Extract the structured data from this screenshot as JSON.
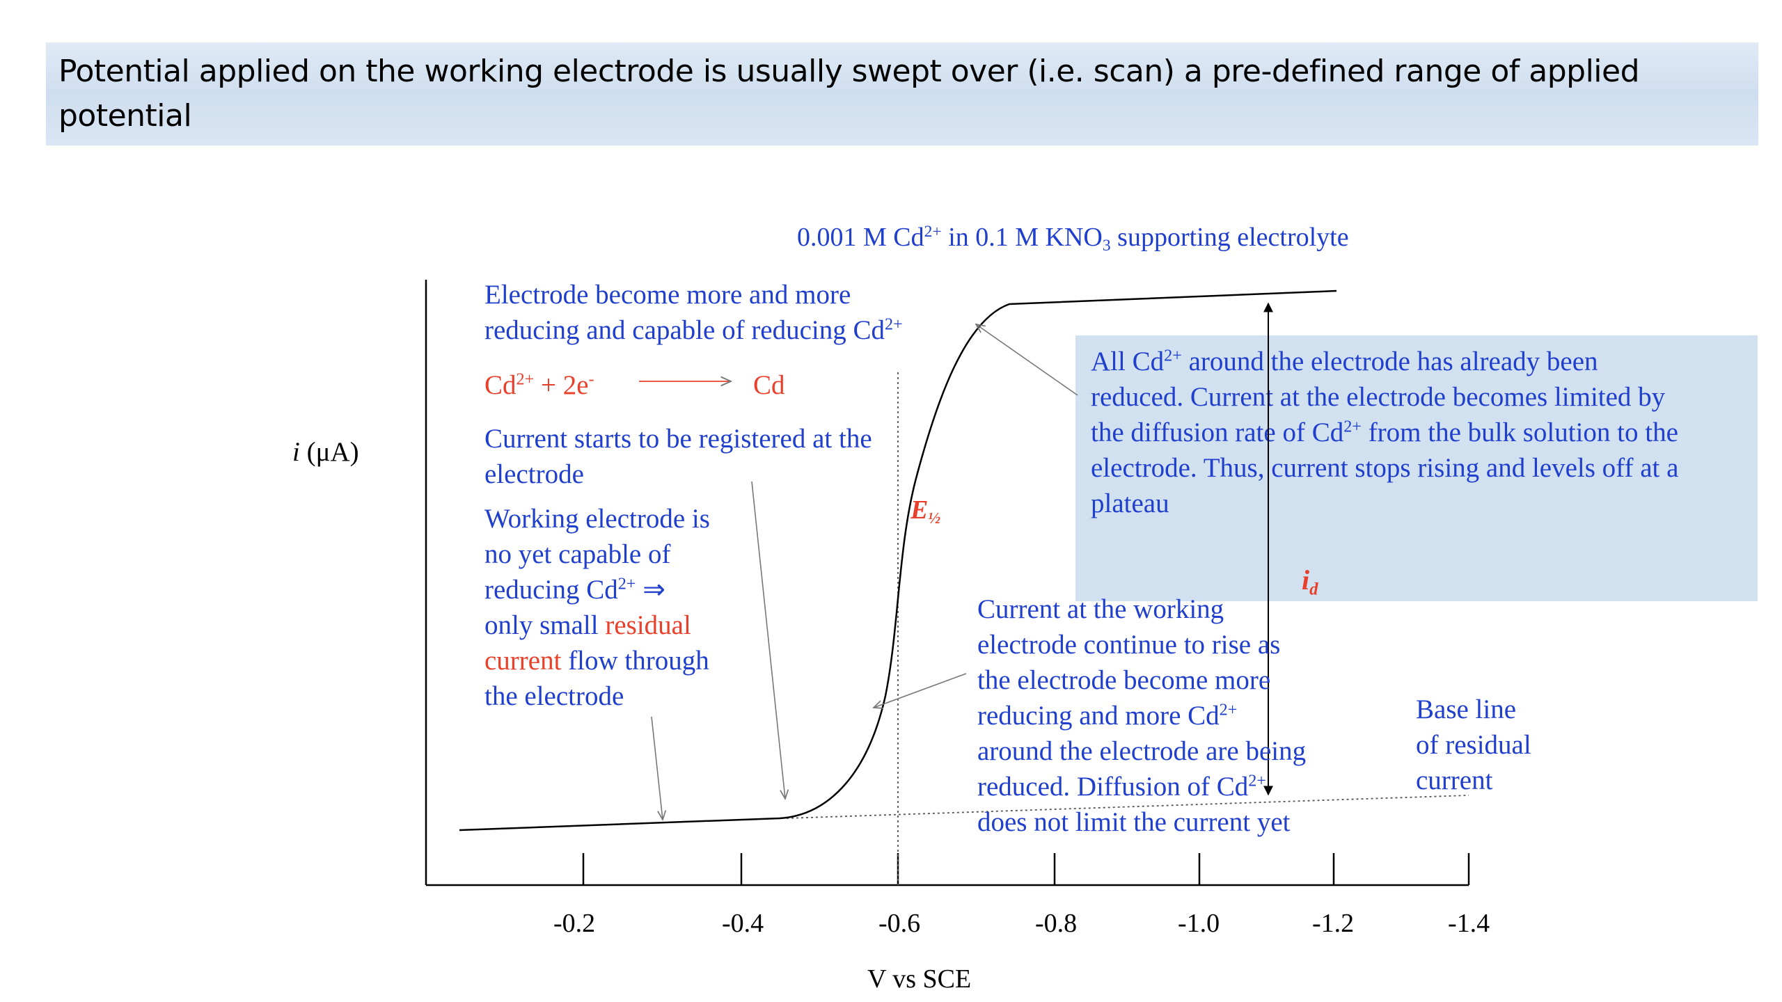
{
  "banner": {
    "line1": "Potential applied on the working electrode is usually swept over (i.e. scan) a pre-defined range of applied",
    "line2": "potential"
  },
  "diagram": {
    "title_pre": "0.001 M Cd",
    "title_sup": "2+",
    "title_mid": " in 0.1 M KNO",
    "title_sub": "3",
    "title_post": " supporting electrolyte",
    "y_label": "i (μA)",
    "x_label": "V vs SCE",
    "x_ticks": [
      "-0.2",
      "-0.4",
      "-0.6",
      "-0.8",
      "-1.0",
      "-1.2",
      "-1.4"
    ],
    "e_half": "E½",
    "i_d": "id"
  },
  "annotations": {
    "reducing_line1": "Electrode become more and more",
    "reducing_line2_pre": "reducing and capable of reducing Cd",
    "reducing_sup": "2+",
    "reaction_lhs": "Cd",
    "reaction_lhs_sup": "2+",
    "reaction_mid": " + 2e",
    "reaction_mid_sup": "-",
    "reaction_rhs": "Cd",
    "current_starts_line1": "Current starts to be registered at the",
    "current_starts_line2": "electrode",
    "working_line1": "Working electrode is",
    "working_line2": "no yet capable of",
    "working_line3_pre": "reducing Cd",
    "working_line3_sup": "2+",
    "working_line3_post": " ⇒",
    "working_line4_pre": "only small ",
    "working_line4_red": "residual",
    "working_line5_red": "current",
    "working_line5_post": " flow through",
    "working_line6": "the electrode",
    "boxed_line1_pre": "All Cd",
    "boxed_line1_sup": "2+",
    "boxed_line1_post": " around the electrode has already been",
    "boxed_line2": "reduced. Current at the electrode becomes limited by",
    "boxed_line3_pre": "the diffusion rate of Cd",
    "boxed_line3_sup": "2+",
    "boxed_line3_post": " from the bulk solution to the",
    "boxed_line4": "electrode. Thus, current stops rising and levels off at a",
    "boxed_line5": "plateau",
    "rise_line1": "Current at the working",
    "rise_line2": "electrode continue to rise as",
    "rise_line3": "the electrode become more",
    "rise_line4_pre": "reducing and more Cd",
    "rise_line4_sup": "2+",
    "rise_line5": "around the electrode are being",
    "rise_line6_pre": "reduced. Diffusion of Cd",
    "rise_line6_sup": "2+",
    "rise_line7": "does not limit the current yet",
    "baseline_line1": "Base line",
    "baseline_line2": "of residual",
    "baseline_line3": "current"
  },
  "colors": {
    "annotation_blue": "#1f3fcc",
    "highlight_red": "#e8402a",
    "banner_bg": "#d6e4f2"
  }
}
